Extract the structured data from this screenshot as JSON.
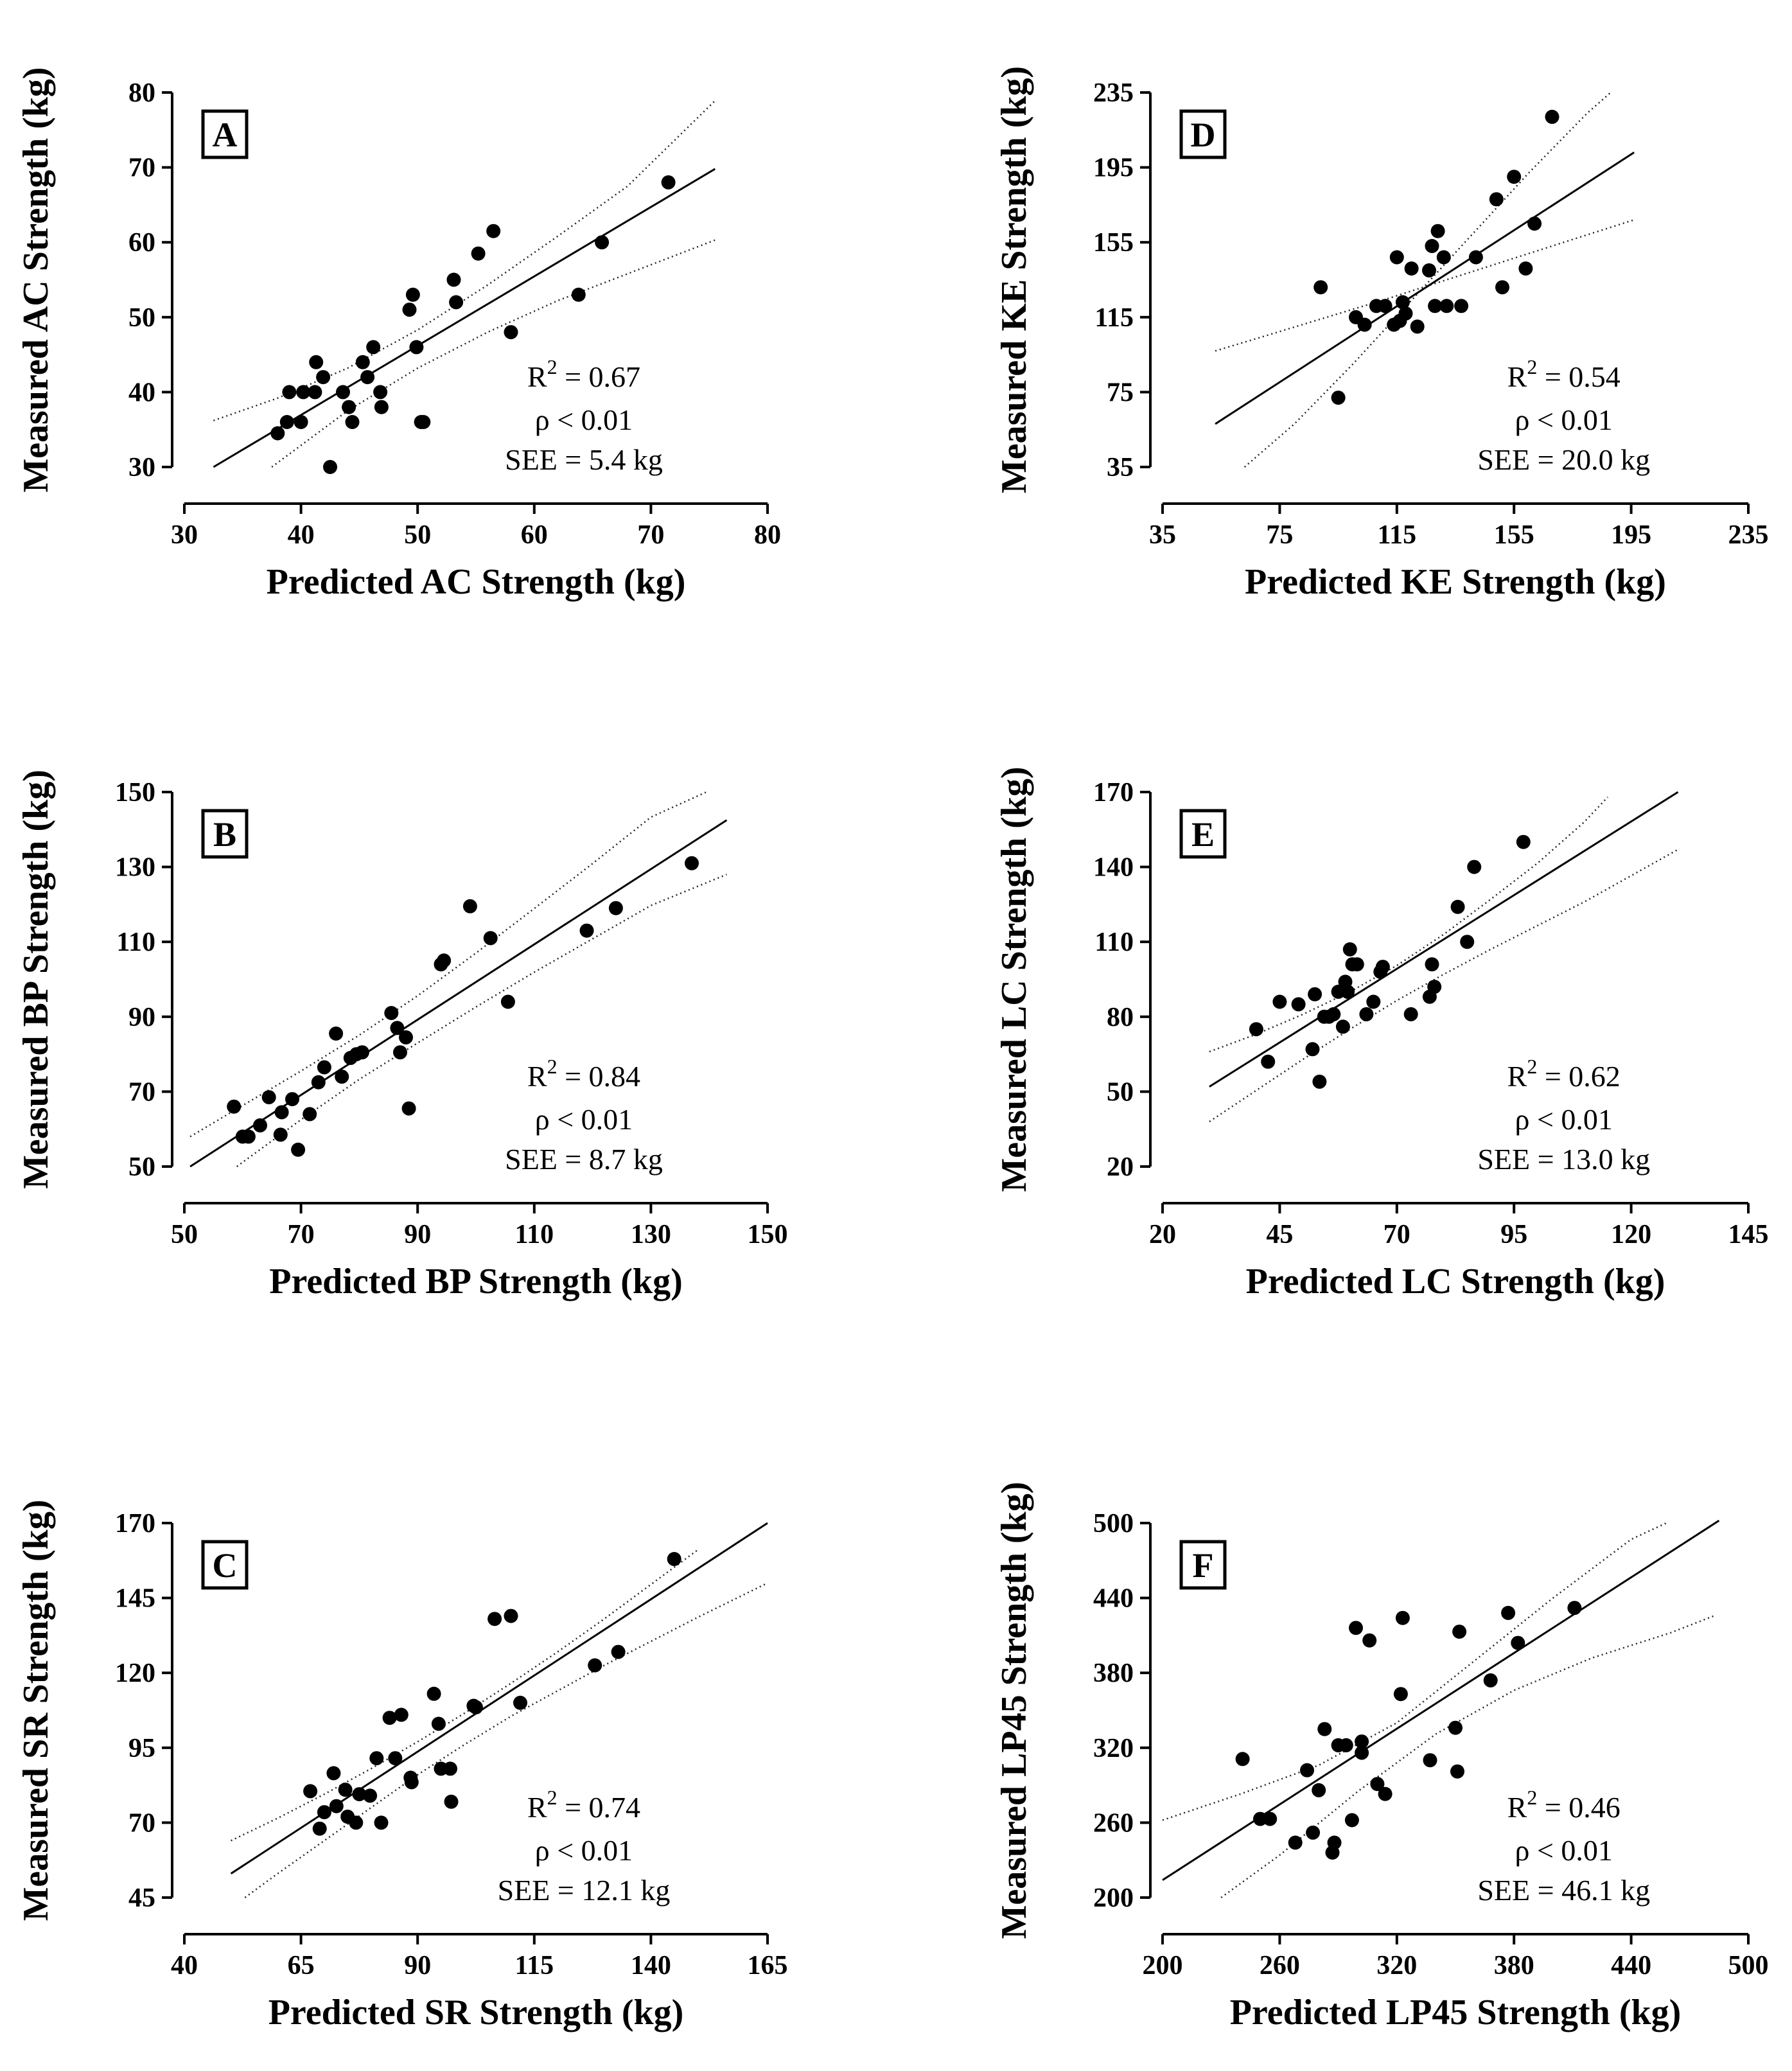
{
  "chart_data": [
    {
      "type": "scatter",
      "panel": "A",
      "xlabel": "Predicted AC Strength (kg)",
      "ylabel": "Measured AC Strength (kg)",
      "xlim": [
        30,
        80
      ],
      "ylim": [
        30,
        80
      ],
      "xticks": [
        30,
        40,
        50,
        60,
        70,
        80
      ],
      "yticks": [
        30,
        40,
        50,
        60,
        70,
        80
      ],
      "stats": {
        "r2": "0.67",
        "p": "< 0.01",
        "see": "SEE = 5.4 kg"
      },
      "regression": {
        "x": [
          32.5,
          75.5
        ],
        "y": [
          30.0,
          69.8
        ]
      },
      "ci_upper": {
        "x": [
          32.5,
          38,
          44,
          50,
          56,
          62,
          68,
          75.5
        ],
        "y": [
          36.2,
          39.2,
          43.2,
          48.3,
          54.3,
          60.8,
          67.5,
          78.9
        ]
      },
      "ci_lower": {
        "x": [
          37.5,
          44,
          50,
          56,
          62,
          68,
          75.5
        ],
        "y": [
          30.0,
          37.5,
          43.2,
          48.0,
          52.2,
          55.8,
          60.3
        ]
      },
      "points": [
        [
          38,
          34.5
        ],
        [
          38.8,
          36
        ],
        [
          39,
          40
        ],
        [
          40,
          36
        ],
        [
          40.2,
          40
        ],
        [
          41.2,
          40
        ],
        [
          41.3,
          44
        ],
        [
          41.9,
          42
        ],
        [
          42.5,
          30
        ],
        [
          43.6,
          40
        ],
        [
          44.1,
          38
        ],
        [
          44.4,
          36
        ],
        [
          45.3,
          44
        ],
        [
          45.7,
          42
        ],
        [
          46.2,
          46
        ],
        [
          46.8,
          40
        ],
        [
          46.9,
          38
        ],
        [
          49.3,
          51
        ],
        [
          49.6,
          53
        ],
        [
          49.9,
          46
        ],
        [
          50.3,
          36
        ],
        [
          50.5,
          36
        ],
        [
          53.1,
          55
        ],
        [
          53.3,
          52
        ],
        [
          55.2,
          58.5
        ],
        [
          56.5,
          61.5
        ],
        [
          58,
          48
        ],
        [
          63.8,
          53
        ],
        [
          65.8,
          60
        ],
        [
          71.5,
          68
        ]
      ]
    },
    {
      "type": "scatter",
      "panel": "B",
      "xlabel": "Predicted BP Strength (kg)",
      "ylabel": "Measured BP Strength (kg)",
      "xlim": [
        50,
        150
      ],
      "ylim": [
        50,
        150
      ],
      "xticks": [
        50,
        70,
        90,
        110,
        130,
        150
      ],
      "yticks": [
        50,
        70,
        90,
        110,
        130,
        150
      ],
      "stats": {
        "r2": "0.84",
        "p": "< 0.01",
        "see": "SEE = 8.7 kg"
      },
      "regression": {
        "x": [
          51,
          143
        ],
        "y": [
          50.0,
          142.5
        ]
      },
      "ci_upper": {
        "x": [
          51,
          60,
          70,
          80,
          90,
          100,
          110,
          120,
          130,
          139.5
        ],
        "y": [
          58.0,
          66.3,
          75.5,
          85.1,
          95.6,
          107.0,
          118.9,
          130.9,
          143.3,
          150.0
        ]
      },
      "ci_lower": {
        "x": [
          59,
          70,
          80,
          90,
          100,
          110,
          120,
          130,
          143
        ],
        "y": [
          50.0,
          62.5,
          73.3,
          83.0,
          92.6,
          101.9,
          110.8,
          119.7,
          128.0
        ]
      }
    },
    {
      "type": "scatter",
      "panel": "C",
      "xlabel": "Predicted SR Strength (kg)",
      "ylabel": "Measured SR Strength (kg)",
      "xlim": [
        40,
        165
      ],
      "ylim": [
        45,
        170
      ],
      "xticks": [
        40,
        65,
        90,
        115,
        140,
        165
      ],
      "yticks": [
        45,
        70,
        95,
        120,
        145,
        170
      ],
      "stats": {
        "r2": "0.74",
        "p": "< 0.01",
        "see": "SEE = 12.1 kg"
      },
      "regression": {
        "x": [
          50,
          165
        ],
        "y": [
          53,
          170
        ]
      },
      "ci_upper": {
        "x": [
          50,
          60,
          70,
          80,
          90,
          100,
          110,
          120,
          130,
          140,
          150
        ],
        "y": [
          64.0,
          71.5,
          79.5,
          88.0,
          97.0,
          106.5,
          116.5,
          127.0,
          138.0,
          149.5,
          161.0
        ]
      },
      "ci_lower": {
        "x": [
          53,
          60,
          70,
          80,
          90,
          100,
          110,
          120,
          130,
          140,
          150,
          165
        ],
        "y": [
          45.0,
          53.0,
          64.0,
          75.0,
          86.0,
          96.0,
          105.5,
          114.0,
          122.5,
          130.5,
          138.5,
          150.0
        ]
      },
      "points": [
        [
          67,
          80.5
        ],
        [
          69,
          68
        ],
        [
          70,
          73.5
        ],
        [
          72,
          86.5
        ],
        [
          72.6,
          75.5
        ],
        [
          74.5,
          81
        ],
        [
          75,
          72
        ],
        [
          76.8,
          70
        ],
        [
          77.5,
          79.5
        ],
        [
          79.8,
          79
        ],
        [
          81.2,
          91.5
        ],
        [
          82.2,
          70
        ],
        [
          84,
          105
        ],
        [
          85.2,
          91.5
        ],
        [
          86.5,
          106
        ],
        [
          88.5,
          85
        ],
        [
          88.7,
          83.5
        ],
        [
          93.5,
          113
        ],
        [
          94.5,
          103
        ],
        [
          95,
          88
        ],
        [
          97,
          88
        ],
        [
          97.2,
          77
        ],
        [
          102,
          109
        ],
        [
          102.5,
          108.5
        ],
        [
          106.5,
          138
        ],
        [
          110,
          139
        ],
        [
          112,
          110
        ],
        [
          128,
          122.5
        ],
        [
          133,
          127
        ],
        [
          145,
          158
        ]
      ]
    },
    {
      "type": "scatter",
      "panel": "D",
      "xlabel": "Predicted KE Strength (kg)",
      "ylabel": "Measured KE Strength (kg)",
      "xlim": [
        35,
        235
      ],
      "ylim": [
        35,
        235
      ],
      "xticks": [
        35,
        75,
        115,
        155,
        195,
        235
      ],
      "yticks": [
        35,
        75,
        115,
        155,
        195,
        235
      ],
      "stats": {
        "r2": "0.54",
        "p": "< 0.01",
        "see": "SEE = 20.0 kg"
      },
      "regression": {
        "x": [
          53,
          196
        ],
        "y": [
          58,
          203
        ]
      },
      "ci_upper": {
        "x": [
          63,
          80,
          100,
          120,
          140,
          160,
          180,
          188
        ],
        "y": [
          35.0,
          58.0,
          90.0,
          124.0,
          158.0,
          192.0,
          224.0,
          235.0
        ]
      },
      "ci_lower": {
        "x": [
          53,
          70,
          90,
          110,
          130,
          150,
          170,
          196
        ],
        "y": [
          97.0,
          105.0,
          114.5,
          124.0,
          134.0,
          144.0,
          154.0,
          167.0
        ]
      },
      "points": [
        [
          89,
          131
        ],
        [
          95,
          72
        ],
        [
          101,
          115
        ],
        [
          104,
          111
        ],
        [
          108,
          121
        ],
        [
          111,
          121
        ],
        [
          114,
          111
        ],
        [
          115,
          147
        ],
        [
          116,
          113
        ],
        [
          117,
          123
        ],
        [
          118,
          117
        ],
        [
          120,
          141
        ],
        [
          122,
          110
        ],
        [
          126,
          140
        ],
        [
          127,
          153
        ],
        [
          128,
          121
        ],
        [
          129,
          161
        ],
        [
          131,
          147
        ],
        [
          132,
          121
        ],
        [
          137,
          121
        ],
        [
          142,
          147
        ],
        [
          149,
          178
        ],
        [
          151,
          131
        ],
        [
          155,
          190
        ],
        [
          159,
          141
        ],
        [
          162,
          165
        ],
        [
          168,
          222
        ]
      ]
    },
    {
      "type": "scatter",
      "panel": "E",
      "xlabel": "Predicted LC Strength (kg)",
      "ylabel": "Measured LC Strength (kg)",
      "xlim": [
        20,
        145
      ],
      "ylim": [
        20,
        170
      ],
      "xticks": [
        20,
        45,
        70,
        95,
        120,
        145
      ],
      "yticks": [
        20,
        50,
        80,
        110,
        140,
        170
      ],
      "stats": {
        "r2": "0.62",
        "p": "< 0.01",
        "see": "SEE = 13.0 kg"
      },
      "regression": {
        "x": [
          30,
          130
        ],
        "y": [
          52,
          170
        ]
      },
      "ci_upper": {
        "x": [
          30,
          40,
          50,
          60,
          70,
          80,
          90,
          100,
          110,
          115
        ],
        "y": [
          66.0,
          73.0,
          81.0,
          90.0,
          100.5,
          113.0,
          127.0,
          141.5,
          158.0,
          168.0
        ]
      },
      "ci_lower": {
        "x": [
          30,
          40,
          50,
          60,
          70,
          80,
          90,
          100,
          110,
          120,
          130
        ],
        "y": [
          38.0,
          50.5,
          63.0,
          75.0,
          86.5,
          97.0,
          107.0,
          116.5,
          126.0,
          136.5,
          147.0
        ]
      },
      "points": [
        [
          40,
          75
        ],
        [
          42.5,
          62
        ],
        [
          45,
          86
        ],
        [
          49,
          85
        ],
        [
          52,
          67
        ],
        [
          52.5,
          89
        ],
        [
          53.5,
          54
        ],
        [
          54.5,
          80
        ],
        [
          55.5,
          80
        ],
        [
          56.5,
          81
        ],
        [
          57.5,
          90
        ],
        [
          58.5,
          76
        ],
        [
          59,
          94
        ],
        [
          59.5,
          90
        ],
        [
          60,
          107
        ],
        [
          60.5,
          101
        ],
        [
          61.5,
          101
        ],
        [
          63.5,
          81
        ],
        [
          65,
          86
        ],
        [
          66.5,
          98
        ],
        [
          67,
          100
        ],
        [
          73,
          81
        ],
        [
          77,
          88
        ],
        [
          77.5,
          101
        ],
        [
          78,
          92
        ],
        [
          83,
          124
        ],
        [
          85,
          110
        ],
        [
          86.5,
          140
        ],
        [
          97,
          150
        ]
      ]
    },
    {
      "type": "scatter",
      "panel": "F",
      "xlabel": "Predicted LP45 Strength (kg)",
      "ylabel": "Measured LP45 Strength (kg)",
      "xlim": [
        200,
        500
      ],
      "ylim": [
        200,
        500
      ],
      "xticks": [
        200,
        260,
        320,
        380,
        440,
        500
      ],
      "yticks": [
        200,
        260,
        320,
        380,
        440,
        500
      ],
      "stats": {
        "r2": "0.46",
        "p": "< 0.01",
        "see": "SEE = 46.1 kg"
      },
      "regression": {
        "x": [
          200,
          485
        ],
        "y": [
          214,
          502
        ]
      },
      "ci_upper": {
        "x": [
          200,
          240,
          280,
          320,
          360,
          400,
          440,
          458
        ],
        "y": [
          262.0,
          283.0,
          306.0,
          340.0,
          390.0,
          440.0,
          487.0,
          500.0
        ]
      },
      "ci_lower": {
        "x": [
          230,
          260,
          300,
          340,
          380,
          420,
          460,
          483
        ],
        "y": [
          200.0,
          234.0,
          285.0,
          331.0,
          366.0,
          392.0,
          412.0,
          426.0
        ]
      },
      "points": [
        [
          241,
          311
        ],
        [
          250,
          263
        ],
        [
          255,
          263
        ],
        [
          268,
          244
        ],
        [
          274,
          302
        ],
        [
          277,
          252
        ],
        [
          280,
          286
        ],
        [
          283,
          335
        ],
        [
          287,
          236
        ],
        [
          288,
          244
        ],
        [
          290,
          322
        ],
        [
          294,
          322
        ],
        [
          297,
          262
        ],
        [
          299,
          416
        ],
        [
          302,
          316
        ],
        [
          302,
          325
        ],
        [
          306,
          406
        ],
        [
          310,
          291
        ],
        [
          314,
          283
        ],
        [
          322,
          363
        ],
        [
          323,
          424
        ],
        [
          337,
          310
        ],
        [
          350,
          336
        ],
        [
          351,
          301
        ],
        [
          352,
          413
        ],
        [
          368,
          374
        ],
        [
          377,
          428
        ],
        [
          382,
          404
        ],
        [
          411,
          432
        ]
      ]
    }
  ]
}
